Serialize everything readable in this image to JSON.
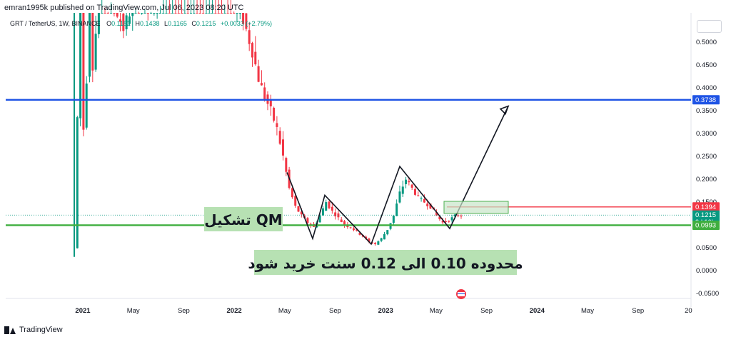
{
  "header": {
    "published": "emran1995k published on TradingView.com, Jul 06, 2023 08:20 UTC"
  },
  "footer": {
    "brand": "TradingView"
  },
  "symbol": {
    "name": "GRT / TetherUS, 1W, BINANCE",
    "open_label": "O",
    "open": "0.1182",
    "high_label": "H",
    "high": "0.1438",
    "low_label": "L",
    "low": "0.1165",
    "close_label": "C",
    "close": "0.1215",
    "change": "+0.0033 (+2.79%)"
  },
  "chart_data": {
    "type": "candlestick",
    "x_ticks": [
      "2021",
      "May",
      "Sep",
      "2022",
      "May",
      "Sep",
      "2023",
      "May",
      "Sep",
      "2024",
      "May",
      "Sep",
      "20"
    ],
    "y_ticks": [
      "0.5000",
      "0.4500",
      "0.4000",
      "0.3500",
      "0.3000",
      "0.2500",
      "0.2000",
      "0.1500",
      "0.1000",
      "0.0500",
      "0.0000",
      "-0.0500"
    ],
    "ylim": [
      -0.05,
      0.5
    ],
    "price_tags": [
      {
        "label": "0.3738",
        "value": 0.3738,
        "color": "#1e53e5"
      },
      {
        "label": "0.1394",
        "value": 0.1394,
        "color": "#f23645"
      },
      {
        "label": "0.1215",
        "sublabel": "3d 16h",
        "value": 0.1215,
        "color": "#089981"
      },
      {
        "label": "0.0993",
        "value": 0.0993,
        "color": "#3fae3f"
      }
    ],
    "horizontal_lines": [
      {
        "value": 0.3738,
        "color": "#1e53e5"
      },
      {
        "value": 0.0993,
        "color": "#3fae3f"
      },
      {
        "value": 0.1394,
        "color": "#f23645"
      }
    ],
    "annotations": {
      "pattern_label": "تشکیل QM",
      "buy_zone_label": "محدوده 0.10 الی 0.12 سنت خرید شود"
    },
    "price_path": [
      {
        "x": 0,
        "y": 0.049
      },
      {
        "x": 2,
        "y": 0.62
      },
      {
        "x": 3,
        "y": 0.31
      },
      {
        "x": 4,
        "y": 0.42
      },
      {
        "x": 5,
        "y": 0.58
      },
      {
        "x": 6,
        "y": 0.45
      },
      {
        "x": 7,
        "y": 0.52
      },
      {
        "x": 8,
        "y": 0.62
      },
      {
        "x": 12,
        "y": 0.6
      },
      {
        "x": 16,
        "y": 0.53
      },
      {
        "x": 20,
        "y": 0.6
      },
      {
        "x": 25,
        "y": 0.58
      },
      {
        "x": 30,
        "y": 0.64
      },
      {
        "x": 45,
        "y": 0.66
      },
      {
        "x": 50,
        "y": 0.62
      },
      {
        "x": 52,
        "y": 0.58
      },
      {
        "x": 55,
        "y": 0.55
      },
      {
        "x": 58,
        "y": 0.48
      },
      {
        "x": 60,
        "y": 0.42
      },
      {
        "x": 62,
        "y": 0.38
      },
      {
        "x": 64,
        "y": 0.35
      },
      {
        "x": 66,
        "y": 0.31
      },
      {
        "x": 68,
        "y": 0.25
      },
      {
        "x": 70,
        "y": 0.18
      },
      {
        "x": 72,
        "y": 0.14
      },
      {
        "x": 74,
        "y": 0.12
      },
      {
        "x": 76,
        "y": 0.105
      },
      {
        "x": 78,
        "y": 0.095
      },
      {
        "x": 80,
        "y": 0.12
      },
      {
        "x": 82,
        "y": 0.15
      },
      {
        "x": 84,
        "y": 0.13
      },
      {
        "x": 86,
        "y": 0.115
      },
      {
        "x": 88,
        "y": 0.1
      },
      {
        "x": 90,
        "y": 0.095
      },
      {
        "x": 92,
        "y": 0.085
      },
      {
        "x": 94,
        "y": 0.075
      },
      {
        "x": 96,
        "y": 0.062
      },
      {
        "x": 98,
        "y": 0.058
      },
      {
        "x": 100,
        "y": 0.07
      },
      {
        "x": 102,
        "y": 0.09
      },
      {
        "x": 104,
        "y": 0.12
      },
      {
        "x": 106,
        "y": 0.17
      },
      {
        "x": 108,
        "y": 0.2
      },
      {
        "x": 110,
        "y": 0.18
      },
      {
        "x": 112,
        "y": 0.16
      },
      {
        "x": 114,
        "y": 0.15
      },
      {
        "x": 116,
        "y": 0.14
      },
      {
        "x": 118,
        "y": 0.12
      },
      {
        "x": 120,
        "y": 0.105
      },
      {
        "x": 122,
        "y": 0.11
      },
      {
        "x": 124,
        "y": 0.12
      },
      {
        "x": 126,
        "y": 0.1215
      }
    ],
    "pattern_path": [
      {
        "x": 0,
        "y": 0.215
      },
      {
        "x": 1,
        "y": 0.07
      },
      {
        "x": 2,
        "y": 0.165
      },
      {
        "x": 3,
        "y": 0.058
      },
      {
        "x": 4,
        "y": 0.228
      },
      {
        "x": 5,
        "y": 0.092
      },
      {
        "x": 6,
        "y": 0.36
      }
    ]
  }
}
